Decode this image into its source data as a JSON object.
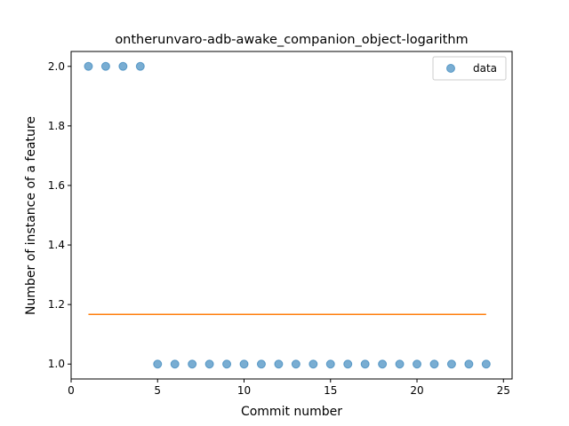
{
  "chart_data": {
    "type": "scatter",
    "title": "ontherunvaro-adb-awake_companion_object-logarithm",
    "xlabel": "Commit number",
    "ylabel": "Number of instance of a feature",
    "xlim": [
      0,
      25.5
    ],
    "ylim": [
      0.95,
      2.05
    ],
    "xticks": [
      0,
      5,
      10,
      15,
      20,
      25
    ],
    "yticks": [
      1.0,
      1.2,
      1.4,
      1.6,
      1.8,
      2.0
    ],
    "grid": false,
    "legend_position": "top-right",
    "series": [
      {
        "name": "data",
        "kind": "scatter",
        "color": "#1f77b4",
        "x": [
          1,
          2,
          3,
          4,
          5,
          6,
          7,
          8,
          9,
          10,
          11,
          12,
          13,
          14,
          15,
          16,
          17,
          18,
          19,
          20,
          21,
          22,
          23,
          24
        ],
        "y": [
          2,
          2,
          2,
          2,
          1,
          1,
          1,
          1,
          1,
          1,
          1,
          1,
          1,
          1,
          1,
          1,
          1,
          1,
          1,
          1,
          1,
          1,
          1,
          1
        ]
      },
      {
        "kind": "line",
        "color": "#ff7f0e",
        "x": [
          1,
          24
        ],
        "y": [
          1.1667,
          1.1667
        ]
      }
    ]
  }
}
